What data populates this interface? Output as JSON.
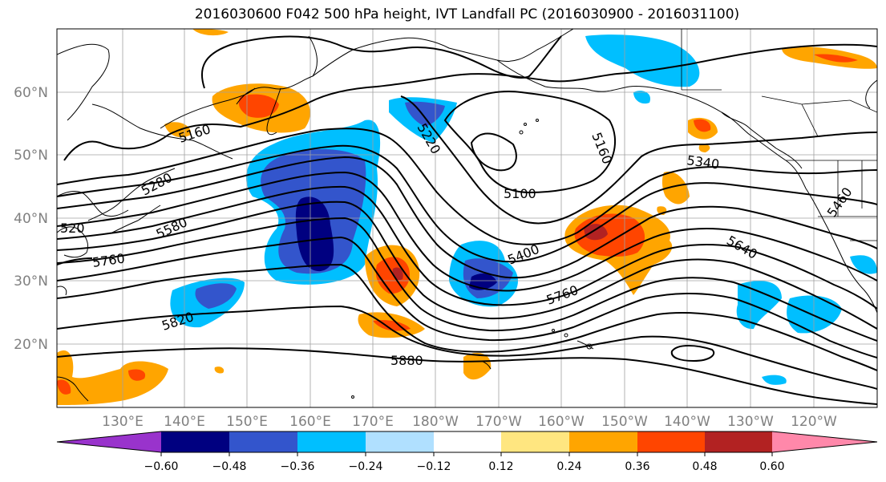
{
  "title": "2016030600 F042 500 hPa height, IVT Landfall PC (2016030900 - 2016031100)",
  "lat_labels": [
    "60°N",
    "50°N",
    "40°N",
    "30°N",
    "20°N"
  ],
  "lon_labels": [
    "130°E",
    "140°E",
    "150°E",
    "160°E",
    "170°E",
    "180°W",
    "170°W",
    "160°W",
    "150°W",
    "140°W",
    "130°W",
    "120°W"
  ],
  "contour_labels": [
    "5160",
    "5220",
    "5160",
    "5280",
    "5340",
    "5100",
    "5460",
    "5580",
    "520",
    "5400",
    "5640",
    "5760",
    "5760",
    "5820",
    "5880"
  ],
  "colorbar": {
    "colors": [
      "#9933cc",
      "#000080",
      "#3355cc",
      "#00bfff",
      "#b0e0ff",
      "#ffffff",
      "#ffe680",
      "#ffa500",
      "#ff4500",
      "#b22222",
      "#ff88aa"
    ],
    "tick_labels": [
      "−0.60",
      "−0.48",
      "−0.36",
      "−0.24",
      "−0.12",
      "0.12",
      "0.24",
      "0.36",
      "0.48",
      "0.60"
    ]
  }
}
